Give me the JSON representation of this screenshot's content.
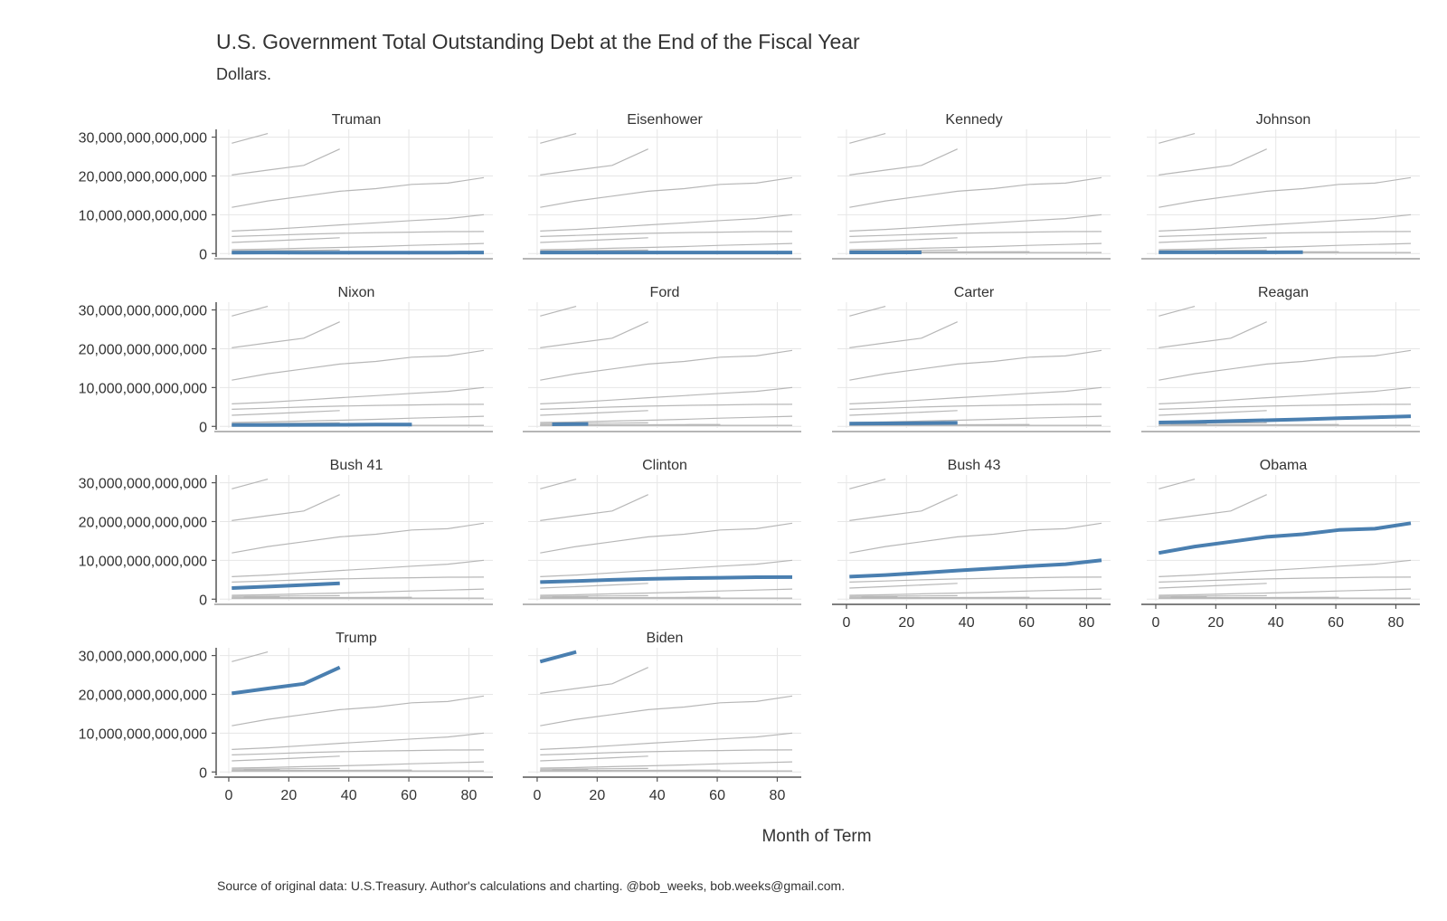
{
  "chart_data": {
    "type": "line",
    "title": "U.S. Government Total Outstanding Debt at the End of the Fiscal Year",
    "subtitle": "Dollars.",
    "xlabel": "Month of Term",
    "ylabel": "",
    "caption": "Source of original data: U.S.Treasury. Author's calculations and charting. @bob_weeks, bob.weeks@gmail.com.",
    "xlim": [
      -3,
      88
    ],
    "ylim": [
      -400000000000,
      32000000000000
    ],
    "x_ticks": [
      0,
      20,
      40,
      60,
      80
    ],
    "x_tick_labels": [
      "0",
      "20",
      "40",
      "60",
      "80"
    ],
    "y_ticks": [
      0,
      10000000000000,
      20000000000000,
      30000000000000
    ],
    "y_tick_labels": [
      "0",
      "10,000,000,000,000",
      "20,000,000,000,000",
      "30,000,000,000,000"
    ],
    "grid": true,
    "layout": "facet-wrap, 4 columns",
    "colors": {
      "highlight": "#4a7fb0",
      "background_series": "#b7b7b7",
      "grid": "#e6e6e6",
      "axis": "#555555",
      "text": "#333333"
    },
    "series": [
      {
        "name": "Truman",
        "x": [
          1,
          13,
          25,
          37,
          49,
          61,
          73,
          85
        ],
        "y": [
          260000000000,
          271000000000,
          257000000000,
          252000000000,
          257000000000,
          255000000000,
          259000000000,
          266000000000
        ]
      },
      {
        "name": "Eisenhower",
        "x": [
          1,
          13,
          25,
          37,
          49,
          61,
          73,
          85
        ],
        "y": [
          271000000000,
          274000000000,
          273000000000,
          272000000000,
          270000000000,
          276000000000,
          285000000000,
          286000000000
        ]
      },
      {
        "name": "Kennedy",
        "x": [
          1,
          13,
          25
        ],
        "y": [
          289000000000,
          298000000000,
          306000000000
        ]
      },
      {
        "name": "Johnson",
        "x": [
          1,
          13,
          25,
          37,
          49
        ],
        "y": [
          312000000000,
          317000000000,
          320000000000,
          329000000000,
          341000000000
        ]
      },
      {
        "name": "Nixon",
        "x": [
          1,
          13,
          25,
          37,
          49,
          61
        ],
        "y": [
          354000000000,
          370000000000,
          398000000000,
          427000000000,
          458000000000,
          475000000000
        ]
      },
      {
        "name": "Ford",
        "x": [
          5,
          17
        ],
        "y": [
          533000000000,
          620000000000
        ]
      },
      {
        "name": "Carter",
        "x": [
          1,
          13,
          25,
          37
        ],
        "y": [
          699000000000,
          772000000000,
          827000000000,
          908000000000
        ]
      },
      {
        "name": "Reagan",
        "x": [
          1,
          13,
          25,
          37,
          49,
          61,
          73,
          85
        ],
        "y": [
          998000000000,
          1142000000000,
          1377000000000,
          1572000000000,
          1823000000000,
          2125000000000,
          2350000000000,
          2602000000000
        ]
      },
      {
        "name": "Bush 41",
        "x": [
          1,
          13,
          25,
          37
        ],
        "y": [
          2857000000000,
          3233000000000,
          3665000000000,
          4065000000000
        ]
      },
      {
        "name": "Clinton",
        "x": [
          1,
          13,
          25,
          37,
          49,
          61,
          73,
          85
        ],
        "y": [
          4411000000000,
          4692000000000,
          4973000000000,
          5224000000000,
          5413000000000,
          5526000000000,
          5656000000000,
          5674000000000
        ]
      },
      {
        "name": "Bush 43",
        "x": [
          1,
          13,
          25,
          37,
          49,
          61,
          73,
          85
        ],
        "y": [
          5807000000000,
          6228000000000,
          6783000000000,
          7379000000000,
          7932000000000,
          8507000000000,
          9008000000000,
          10025000000000
        ]
      },
      {
        "name": "Obama",
        "x": [
          1,
          13,
          25,
          37,
          49,
          61,
          73,
          85
        ],
        "y": [
          11910000000000,
          13562000000000,
          14790000000000,
          16066000000000,
          16738000000000,
          17824000000000,
          18151000000000,
          19573000000000
        ]
      },
      {
        "name": "Trump",
        "x": [
          1,
          13,
          25,
          37
        ],
        "y": [
          20245000000000,
          21516000000000,
          22719000000000,
          26945000000000
        ]
      },
      {
        "name": "Biden",
        "x": [
          1,
          13
        ],
        "y": [
          28429000000000,
          30929000000000
        ]
      }
    ]
  }
}
